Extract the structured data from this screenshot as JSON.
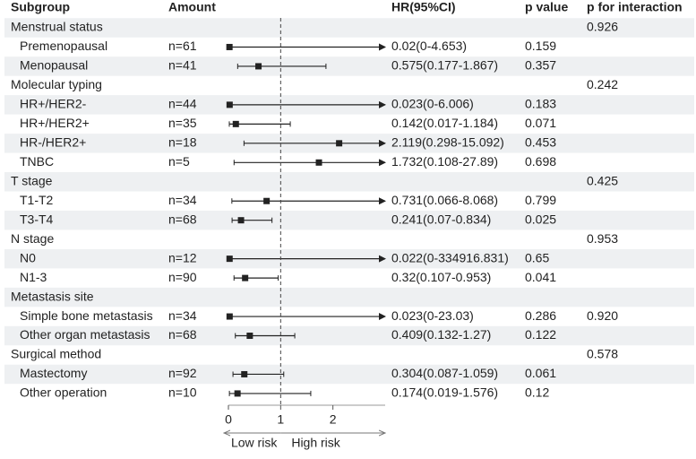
{
  "chart_data": {
    "type": "forest",
    "headers": {
      "subgroup": "Subgroup",
      "amount": "Amount",
      "estimate": "HR(95%CI)",
      "p": "p value",
      "p_interaction": "p for interaction"
    },
    "groups": [
      {
        "name": "Menstrual status",
        "p_interaction": "0.926",
        "rows": [
          {
            "name": "Premenopausal",
            "amount": "n=61",
            "hr": 0.02,
            "lower": 0,
            "upper": 4.653,
            "label": "0.02(0-4.653)",
            "p": "0.159"
          },
          {
            "name": "Menopausal",
            "amount": "n=41",
            "hr": 0.575,
            "lower": 0.177,
            "upper": 1.867,
            "label": "0.575(0.177-1.867)",
            "p": "0.357"
          }
        ]
      },
      {
        "name": "Molecular typing",
        "p_interaction": "0.242",
        "rows": [
          {
            "name": "HR+/HER2-",
            "amount": "n=44",
            "hr": 0.023,
            "lower": 0,
            "upper": 6.006,
            "label": "0.023(0-6.006)",
            "p": "0.183"
          },
          {
            "name": "HR+/HER2+",
            "amount": "n=35",
            "hr": 0.142,
            "lower": 0.017,
            "upper": 1.184,
            "label": "0.142(0.017-1.184)",
            "p": "0.071"
          },
          {
            "name": "HR-/HER2+",
            "amount": "n=18",
            "hr": 2.119,
            "lower": 0.298,
            "upper": 15.092,
            "label": "2.119(0.298-15.092)",
            "p": "0.453"
          },
          {
            "name": "TNBC",
            "amount": "n=5",
            "hr": 1.732,
            "lower": 0.108,
            "upper": 27.89,
            "label": "1.732(0.108-27.89)",
            "p": "0.698"
          }
        ]
      },
      {
        "name": "T stage",
        "p_interaction": "0.425",
        "rows": [
          {
            "name": "T1-T2",
            "amount": "n=34",
            "hr": 0.731,
            "lower": 0.066,
            "upper": 8.068,
            "label": "0.731(0.066-8.068)",
            "p": "0.799"
          },
          {
            "name": "T3-T4",
            "amount": "n=68",
            "hr": 0.241,
            "lower": 0.07,
            "upper": 0.834,
            "label": "0.241(0.07-0.834)",
            "p": "0.025"
          }
        ]
      },
      {
        "name": "N stage",
        "p_interaction": "0.953",
        "rows": [
          {
            "name": "N0",
            "amount": "n=12",
            "hr": 0.022,
            "lower": 0,
            "upper": 334916.831,
            "label": "0.022(0-334916.831)",
            "p": "0.65"
          },
          {
            "name": "N1-3",
            "amount": "n=90",
            "hr": 0.32,
            "lower": 0.107,
            "upper": 0.953,
            "label": "0.32(0.107-0.953)",
            "p": "0.041"
          }
        ]
      },
      {
        "name": "Metastasis site",
        "rows": [
          {
            "name": "Simple bone metastasis",
            "amount": "n=34",
            "hr": 0.023,
            "lower": 0,
            "upper": 23.03,
            "label": "0.023(0-23.03)",
            "p": "0.286",
            "p_interaction": "0.920"
          },
          {
            "name": "Other organ metastasis",
            "amount": "n=68",
            "hr": 0.409,
            "lower": 0.132,
            "upper": 1.27,
            "label": "0.409(0.132-1.27)",
            "p": "0.122"
          }
        ]
      },
      {
        "name": "Surgical method",
        "p_interaction": "0.578",
        "rows": [
          {
            "name": "Mastectomy",
            "amount": "n=92",
            "hr": 0.304,
            "lower": 0.087,
            "upper": 1.059,
            "label": "0.304(0.087-1.059)",
            "p": "0.061"
          },
          {
            "name": "Other operation",
            "amount": "n=10",
            "hr": 0.174,
            "lower": 0.019,
            "upper": 1.576,
            "label": "0.174(0.019-1.576)",
            "p": "0.12"
          }
        ]
      }
    ],
    "xlim": [
      0,
      3
    ],
    "xticks": [
      0,
      1,
      2
    ],
    "reference": 1,
    "low_label": "Low risk",
    "high_label": "High risk",
    "color": "#222222"
  }
}
